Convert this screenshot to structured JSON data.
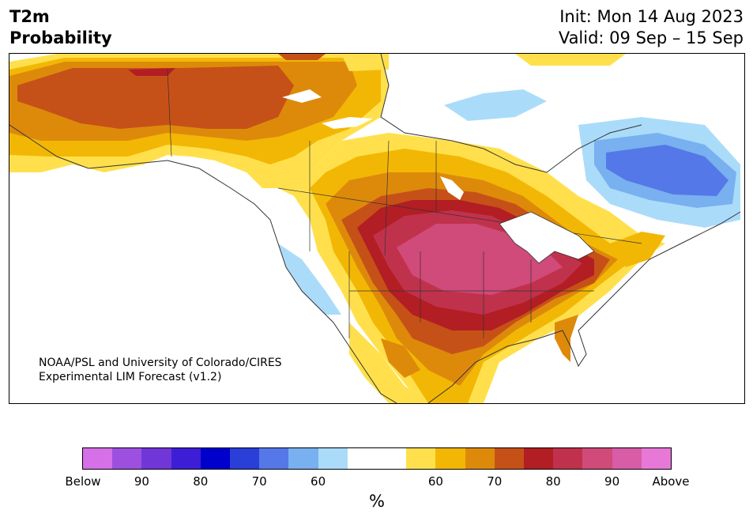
{
  "header": {
    "variable": "T2m",
    "product": "Probability",
    "init": "Init: Mon 14 Aug 2023",
    "valid": "Valid: 09 Sep – 15 Sep"
  },
  "credit": {
    "line1": "NOAA/PSL and University of Colorado/CIRES",
    "line2": "Experimental LIM Forecast (v1.2)"
  },
  "colorbar": {
    "unit": "%",
    "colors": [
      "#d570e8",
      "#9d50e0",
      "#7036d8",
      "#3d1ed6",
      "#0000cc",
      "#2a3ed8",
      "#5478e8",
      "#78b0f0",
      "#aadcfa",
      "#ffffff",
      "#ffffff",
      "#ffe04c",
      "#f2b705",
      "#dd8a0b",
      "#c65118",
      "#b21e23",
      "#c0324c",
      "#d04a7a",
      "#d85ca6",
      "#e878d8"
    ],
    "ticks": [
      {
        "label": "Below",
        "frac": 0.0
      },
      {
        "label": "90",
        "frac": 0.1
      },
      {
        "label": "80",
        "frac": 0.2
      },
      {
        "label": "70",
        "frac": 0.3
      },
      {
        "label": "60",
        "frac": 0.4
      },
      {
        "label": "60",
        "frac": 0.6
      },
      {
        "label": "70",
        "frac": 0.7
      },
      {
        "label": "80",
        "frac": 0.8
      },
      {
        "label": "90",
        "frac": 0.9
      },
      {
        "label": "Above",
        "frac": 1.0
      }
    ]
  },
  "map": {
    "region": "North America",
    "palette": {
      "warm60": "#ffe04c",
      "warm65": "#f2b705",
      "warm70": "#dd8a0b",
      "warm75": "#c65118",
      "warm80": "#b21e23",
      "warm85": "#c0324c",
      "warm90": "#d04a7a",
      "cold60": "#aadcfa",
      "cold70": "#78b0f0",
      "cold80": "#5478e8",
      "land_line": "#333333"
    }
  }
}
